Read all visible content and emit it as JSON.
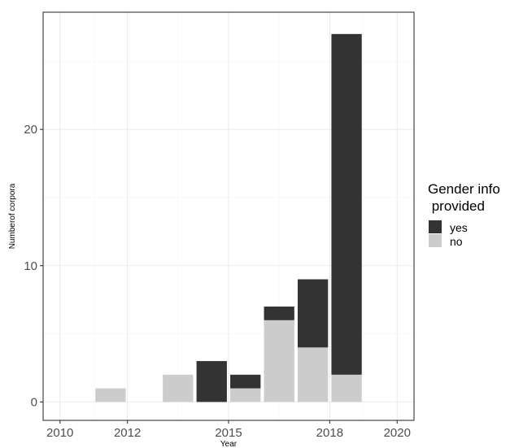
{
  "chart_data": {
    "type": "bar",
    "stacked": true,
    "title": "",
    "xlabel": "Year",
    "ylabel": "Numberof corpora",
    "xlim": [
      2009.5,
      2020.5
    ],
    "ylim": [
      0,
      28
    ],
    "x_ticks": [
      2010,
      2012,
      2015,
      2018,
      2020
    ],
    "x_tick_labels": [
      "2010",
      "2012",
      "2015",
      "2018",
      "2020"
    ],
    "y_ticks": [
      0,
      10,
      20
    ],
    "y_tick_labels": [
      "0",
      "10",
      "20"
    ],
    "grid": true,
    "legend": {
      "title_lines": [
        "Gender info",
        " provided"
      ],
      "placement": "right",
      "entries": [
        "yes",
        "no"
      ]
    },
    "x": [
      2011.5,
      2013.5,
      2014.5,
      2015.5,
      2016.5,
      2017.5,
      2018.5
    ],
    "series": [
      {
        "name": "no",
        "color": "#cccccc",
        "values": [
          1,
          2,
          0,
          1,
          6,
          4,
          2
        ]
      },
      {
        "name": "yes",
        "color": "#333333",
        "values": [
          0,
          0,
          3,
          1,
          1,
          5,
          25
        ]
      }
    ],
    "colors": {
      "panel_border": "#333333",
      "grid_major": "#ebebeb",
      "grid_minor": "#f5f5f5",
      "yes": "#333333",
      "no": "#cccccc"
    }
  }
}
